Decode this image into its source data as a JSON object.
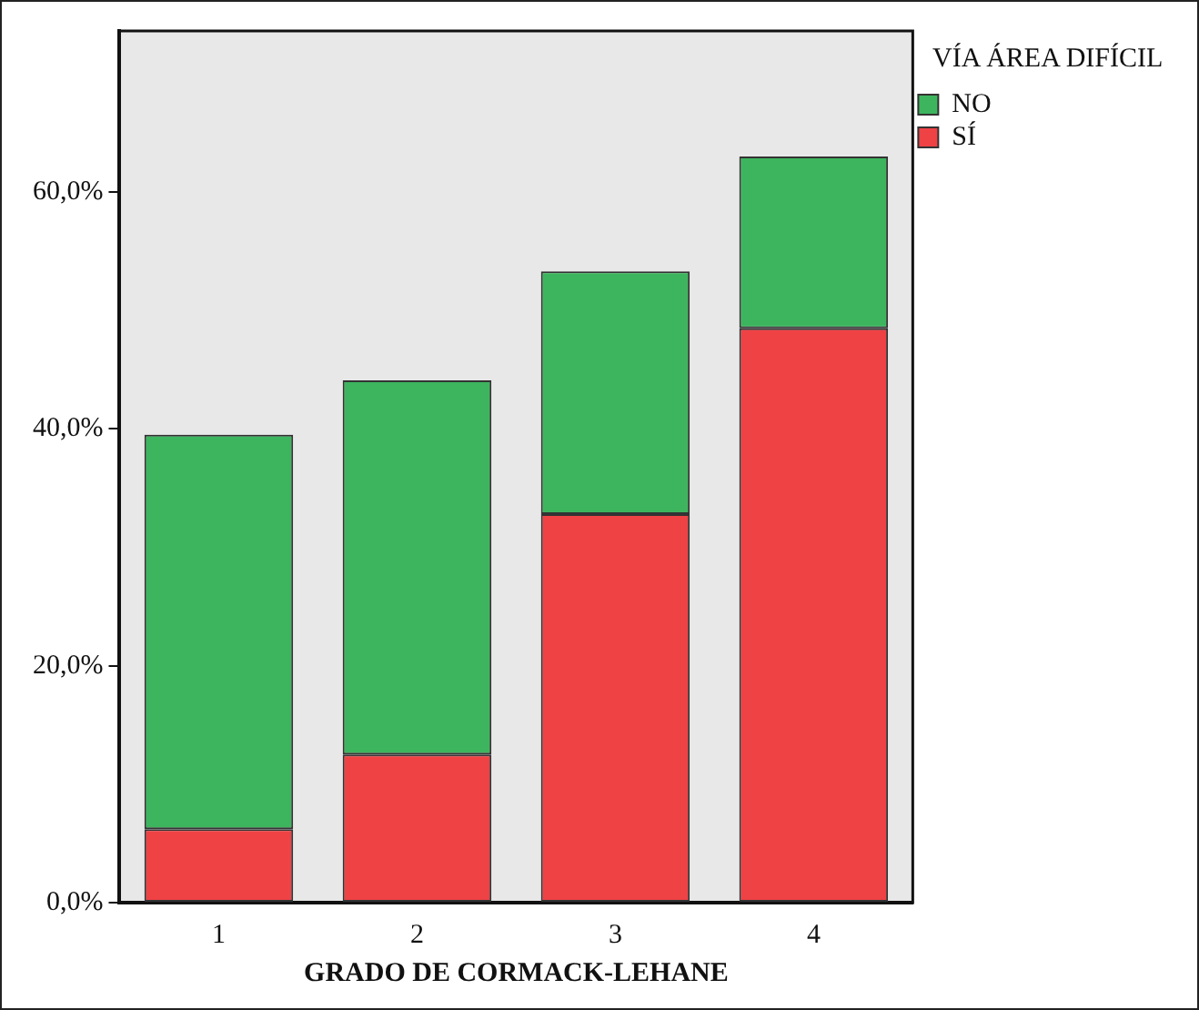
{
  "chart_data": {
    "type": "bar",
    "xlabel": "GRADO DE CORMACK-LEHANE",
    "legend_title": "VÍA ÁREA DIFÍCIL",
    "categories": [
      "1",
      "2",
      "3",
      "4"
    ],
    "stacked": true,
    "series": [
      {
        "name": "SÍ",
        "color": "#ee4245",
        "values": [
          6.2,
          12.5,
          32.8,
          48.5
        ]
      },
      {
        "name": "NO",
        "color": "#3db55e",
        "values": [
          33.3,
          31.6,
          20.5,
          14.5
        ]
      }
    ],
    "ylim": [
      0,
      73.6
    ],
    "yticks": [
      {
        "value": 0,
        "label": "0,0%"
      },
      {
        "value": 20,
        "label": "20,0%"
      },
      {
        "value": 40,
        "label": "40,0%"
      },
      {
        "value": 60,
        "label": "60,0%"
      }
    ],
    "grid": false,
    "legend": "top right"
  }
}
